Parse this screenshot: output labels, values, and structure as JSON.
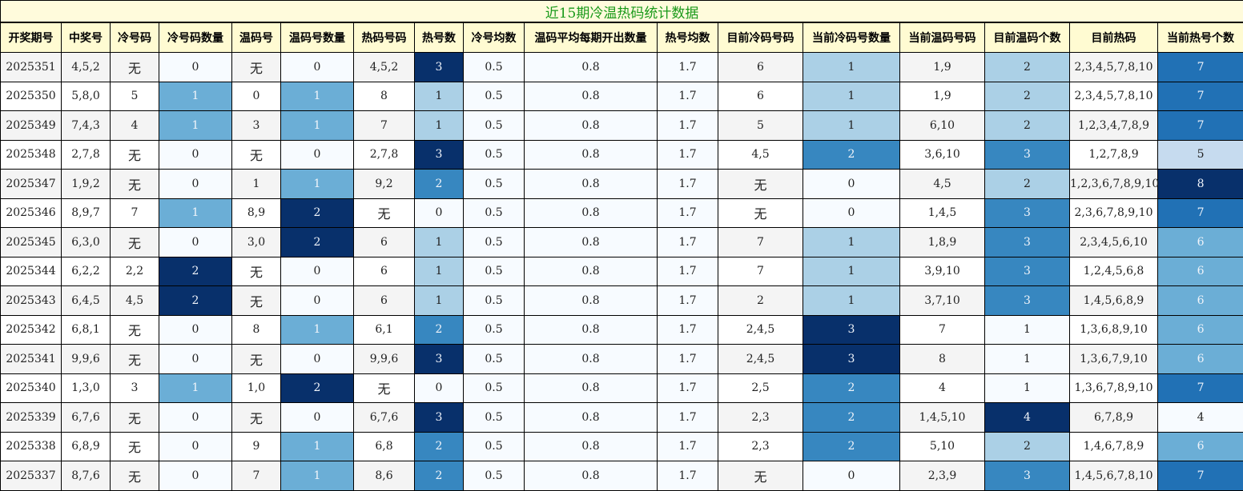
{
  "chart_data": {
    "type": "table",
    "title": "近15期冷温热码统计数据",
    "columns": [
      "开奖期号",
      "中奖号",
      "冷号码",
      "冷号码数量",
      "温码号",
      "温码号数量",
      "热码号码",
      "热号数",
      "冷号均数",
      "温码平均每期开出数量",
      "热号均数",
      "目前冷码号码",
      "当前冷码号数量",
      "当前温码号码",
      "目前温码个数",
      "目前热码",
      "当前热号个数"
    ],
    "heatmap_columns": {
      "3": [
        0,
        2
      ],
      "5": [
        0,
        2
      ],
      "7": [
        0,
        3
      ],
      "8": [
        0.5,
        0.5
      ],
      "9": [
        0.8,
        0.8
      ],
      "10": [
        1.7,
        1.7
      ],
      "12": [
        0,
        3
      ],
      "14": [
        1,
        4
      ],
      "16": [
        4,
        8
      ]
    },
    "rows": [
      [
        "2025351",
        "4,5,2",
        "无",
        "0",
        "无",
        "0",
        "4,5,2",
        "3",
        "0.5",
        "0.8",
        "1.7",
        "6",
        "1",
        "1,9",
        "2",
        "2,3,4,5,7,8,10",
        "7"
      ],
      [
        "2025350",
        "5,8,0",
        "5",
        "1",
        "0",
        "1",
        "8",
        "1",
        "0.5",
        "0.8",
        "1.7",
        "6",
        "1",
        "1,9",
        "2",
        "2,3,4,5,7,8,10",
        "7"
      ],
      [
        "2025349",
        "7,4,3",
        "4",
        "1",
        "3",
        "1",
        "7",
        "1",
        "0.5",
        "0.8",
        "1.7",
        "5",
        "1",
        "6,10",
        "2",
        "1,2,3,4,7,8,9",
        "7"
      ],
      [
        "2025348",
        "2,7,8",
        "无",
        "0",
        "无",
        "0",
        "2,7,8",
        "3",
        "0.5",
        "0.8",
        "1.7",
        "4,5",
        "2",
        "3,6,10",
        "3",
        "1,2,7,8,9",
        "5"
      ],
      [
        "2025347",
        "1,9,2",
        "无",
        "0",
        "1",
        "1",
        "9,2",
        "2",
        "0.5",
        "0.8",
        "1.7",
        "无",
        "0",
        "4,5",
        "2",
        "1,2,3,6,7,8,9,10",
        "8"
      ],
      [
        "2025346",
        "8,9,7",
        "7",
        "1",
        "8,9",
        "2",
        "无",
        "0",
        "0.5",
        "0.8",
        "1.7",
        "无",
        "0",
        "1,4,5",
        "3",
        "2,3,6,7,8,9,10",
        "7"
      ],
      [
        "2025345",
        "6,3,0",
        "无",
        "0",
        "3,0",
        "2",
        "6",
        "1",
        "0.5",
        "0.8",
        "1.7",
        "7",
        "1",
        "1,8,9",
        "3",
        "2,3,4,5,6,10",
        "6"
      ],
      [
        "2025344",
        "6,2,2",
        "2,2",
        "2",
        "无",
        "0",
        "6",
        "1",
        "0.5",
        "0.8",
        "1.7",
        "7",
        "1",
        "3,9,10",
        "3",
        "1,2,4,5,6,8",
        "6"
      ],
      [
        "2025343",
        "6,4,5",
        "4,5",
        "2",
        "无",
        "0",
        "6",
        "1",
        "0.5",
        "0.8",
        "1.7",
        "2",
        "1",
        "3,7,10",
        "3",
        "1,4,5,6,8,9",
        "6"
      ],
      [
        "2025342",
        "6,8,1",
        "无",
        "0",
        "8",
        "1",
        "6,1",
        "2",
        "0.5",
        "0.8",
        "1.7",
        "2,4,5",
        "3",
        "7",
        "1",
        "1,3,6,8,9,10",
        "6"
      ],
      [
        "2025341",
        "9,9,6",
        "无",
        "0",
        "无",
        "0",
        "9,9,6",
        "3",
        "0.5",
        "0.8",
        "1.7",
        "2,4,5",
        "3",
        "8",
        "1",
        "1,3,6,7,9,10",
        "6"
      ],
      [
        "2025340",
        "1,3,0",
        "3",
        "1",
        "1,0",
        "2",
        "无",
        "0",
        "0.5",
        "0.8",
        "1.7",
        "2,5",
        "2",
        "4",
        "1",
        "1,3,6,7,8,9,10",
        "7"
      ],
      [
        "2025339",
        "6,7,6",
        "无",
        "0",
        "无",
        "0",
        "6,7,6",
        "3",
        "0.5",
        "0.8",
        "1.7",
        "2,3",
        "2",
        "1,4,5,10",
        "4",
        "6,7,8,9",
        "4"
      ],
      [
        "2025338",
        "6,8,9",
        "无",
        "0",
        "9",
        "1",
        "6,8",
        "2",
        "0.5",
        "0.8",
        "1.7",
        "2,3",
        "2",
        "5,10",
        "2",
        "1,4,6,7,8,9",
        "6"
      ],
      [
        "2025337",
        "8,7,6",
        "无",
        "0",
        "7",
        "1",
        "8,6",
        "2",
        "0.5",
        "0.8",
        "1.7",
        "无",
        "0",
        "2,3,9",
        "3",
        "1,4,5,6,7,8,10",
        "7"
      ]
    ],
    "colors": {
      "title_text": "#1a9a1a",
      "title_bg": "#fffbdc",
      "header_bg": "#fffbd2",
      "row_alt": "#f4f4f4",
      "row": "#ffffff",
      "blues": [
        "#f7fbff",
        "#c6dbef",
        "#abd0e6",
        "#6baed6",
        "#3787c0",
        "#2171b5",
        "#08306b"
      ]
    }
  }
}
